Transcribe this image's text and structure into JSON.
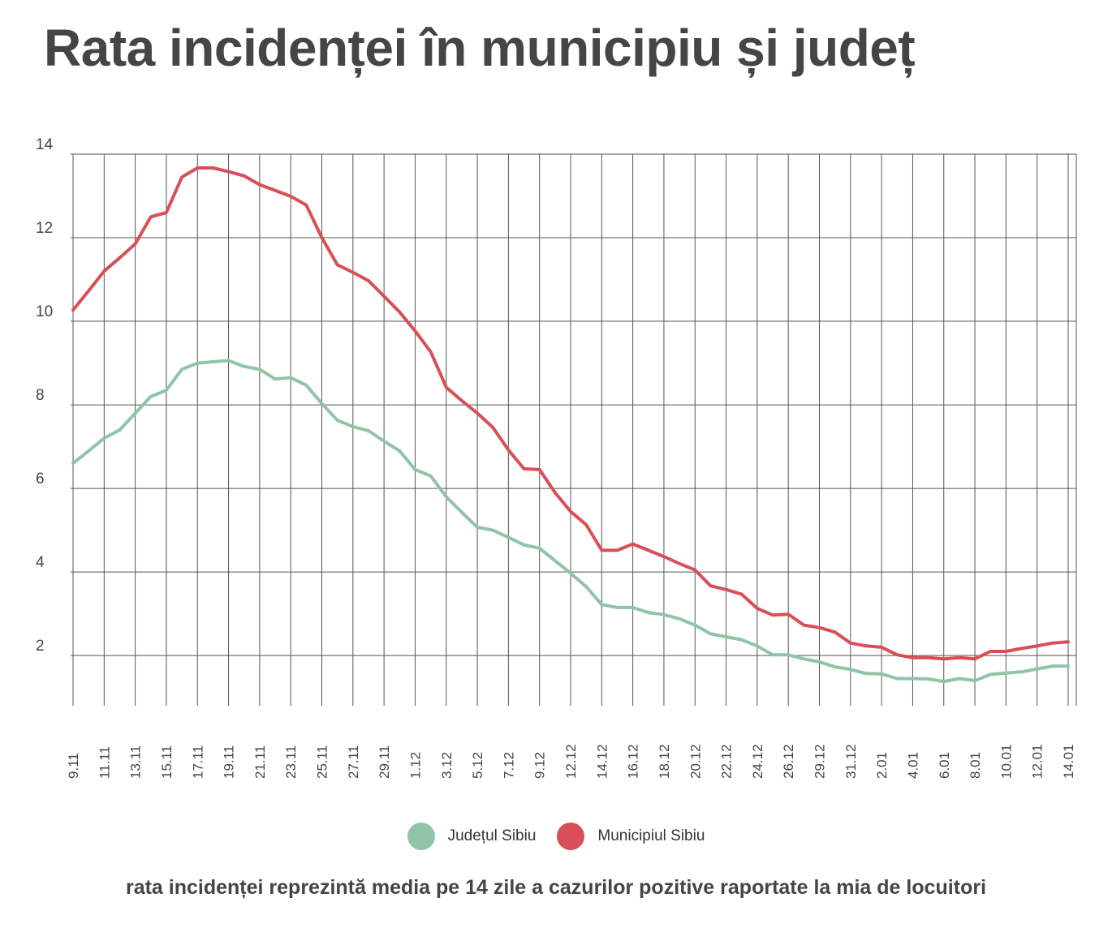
{
  "title": "Rata incidenței în municipiu și județ",
  "note": "rata incidenței reprezintă media pe 14 zile a cazurilor pozitive raportate la mia de locuitori",
  "chart_data": {
    "type": "line",
    "ylim": [
      0.8,
      14
    ],
    "yticks": [
      2,
      4,
      6,
      8,
      10,
      12,
      14
    ],
    "grid": true,
    "legend_position": "bottom",
    "x": [
      "9.11",
      "10.11",
      "11.11",
      "12.11",
      "13.11",
      "14.11",
      "15.11",
      "16.11",
      "17.11",
      "18.11",
      "19.11",
      "20.11",
      "21.11",
      "22.11",
      "23.11",
      "24.11",
      "25.11",
      "26.11",
      "27.11",
      "28.11",
      "29.11",
      "30.11",
      "1.12",
      "2.12",
      "3.12",
      "4.12",
      "5.12",
      "6.12",
      "7.12",
      "8.12",
      "9.12",
      "10.12",
      "12.12",
      "13.12",
      "14.12",
      "15.12",
      "16.12",
      "17.12",
      "18.12",
      "19.12",
      "20.12",
      "21.12",
      "22.12",
      "23.12",
      "24.12",
      "25.12",
      "26.12",
      "27.12",
      "29.12",
      "30.12",
      "31.12",
      "1.01",
      "2.01",
      "3.01",
      "4.01",
      "5.01",
      "6.01",
      "7.01",
      "8.01",
      "9.01",
      "10.01",
      "11.01",
      "12.01",
      "13.01",
      "14.01"
    ],
    "xtick_labels": [
      "9.11",
      "11.11",
      "13.11",
      "15.11",
      "17.11",
      "19.11",
      "21.11",
      "23.11",
      "25.11",
      "27.11",
      "29.11",
      "1.12",
      "3.12",
      "5.12",
      "7.12",
      "9.12",
      "12.12",
      "14.12",
      "16.12",
      "18.12",
      "20.12",
      "22.12",
      "24.12",
      "26.12",
      "29.12",
      "31.12",
      "2.01",
      "4.01",
      "6.01",
      "8.01",
      "10.01",
      "12.01",
      "14.01"
    ],
    "series": [
      {
        "name": "Județul Sibiu",
        "color": "#8fc4a6",
        "values": [
          6.6,
          6.9,
          7.2,
          7.4,
          7.8,
          8.2,
          8.35,
          8.85,
          9.0,
          9.03,
          9.06,
          8.92,
          8.85,
          8.62,
          8.65,
          8.47,
          8.03,
          7.63,
          7.48,
          7.38,
          7.13,
          6.9,
          6.45,
          6.3,
          5.8,
          5.43,
          5.07,
          5.0,
          4.83,
          4.65,
          4.57,
          4.27,
          3.97,
          3.65,
          3.22,
          3.15,
          3.15,
          3.03,
          2.98,
          2.88,
          2.73,
          2.52,
          2.45,
          2.38,
          2.23,
          2.02,
          2.02,
          1.92,
          1.85,
          1.73,
          1.67,
          1.57,
          1.56,
          1.45,
          1.45,
          1.44,
          1.38,
          1.45,
          1.4,
          1.55,
          1.58,
          1.61,
          1.68,
          1.75,
          1.75
        ]
      },
      {
        "name": "Municipiul Sibiu",
        "color": "#d94f57",
        "values": [
          10.27,
          10.73,
          11.2,
          11.52,
          11.85,
          12.5,
          12.6,
          13.45,
          13.67,
          13.67,
          13.58,
          13.48,
          13.27,
          13.13,
          12.99,
          12.78,
          12.0,
          11.35,
          11.17,
          10.97,
          10.6,
          10.22,
          9.77,
          9.27,
          8.42,
          8.1,
          7.8,
          7.46,
          6.92,
          6.47,
          6.45,
          5.9,
          5.45,
          5.13,
          4.52,
          4.52,
          4.67,
          4.52,
          4.37,
          4.2,
          4.05,
          3.67,
          3.58,
          3.47,
          3.13,
          2.97,
          2.99,
          2.73,
          2.67,
          2.56,
          2.3,
          2.23,
          2.2,
          2.02,
          1.95,
          1.95,
          1.92,
          1.95,
          1.92,
          2.1,
          2.1,
          2.17,
          2.23,
          2.3,
          2.33
        ]
      }
    ]
  }
}
